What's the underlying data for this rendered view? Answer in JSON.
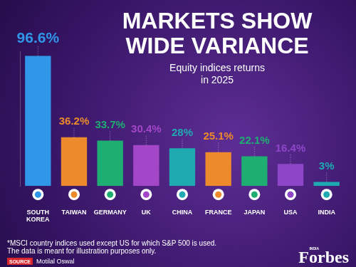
{
  "chart_data": {
    "type": "bar",
    "title": [
      "MARKETS SHOW",
      "WIDE VARIANCE"
    ],
    "subtitle": [
      "Equity indices returns",
      "in 2025"
    ],
    "categories": [
      "SOUTH KOREA",
      "TAIWAN",
      "GERMANY",
      "UK",
      "CHINA",
      "FRANCE",
      "JAPAN",
      "USA",
      "INDIA"
    ],
    "values": [
      96.6,
      36.2,
      33.7,
      30.4,
      28,
      25.1,
      22.1,
      16.4,
      3
    ],
    "value_labels": [
      "96.6%",
      "36.2%",
      "33.7%",
      "30.4%",
      "28%",
      "25.1%",
      "22.1%",
      "16.4%",
      "3%"
    ],
    "colors": [
      "#2f96e8",
      "#ec8a2c",
      "#1fae72",
      "#a446c8",
      "#1eaab0",
      "#ec8a2c",
      "#1fae72",
      "#8e46c8",
      "#1eaab0"
    ],
    "ylim": [
      0,
      100
    ],
    "grid": false,
    "tick_labels": "x",
    "data_labels": true,
    "footnote": [
      "*MSCI country indices used except US for which S&P 500 is used.",
      "The data is meant for illustration purposes only."
    ],
    "source_label": "SOURCE",
    "source": "Motilal Oswal",
    "logo": {
      "brand": "Forbes",
      "edition": "INDIA"
    }
  }
}
